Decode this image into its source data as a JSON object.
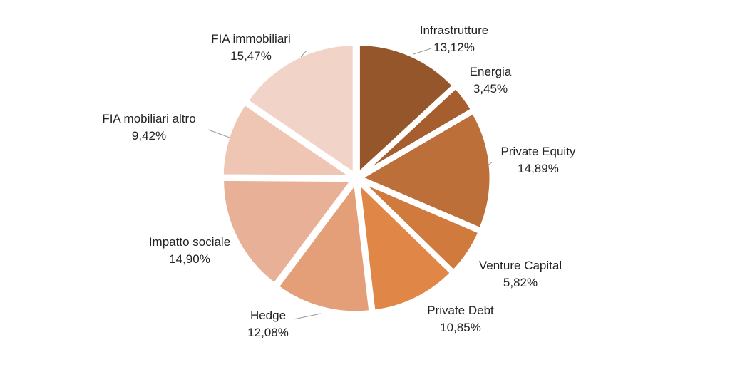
{
  "chart_data": {
    "type": "pie",
    "title": "",
    "start_angle_deg": 0,
    "direction": "clockwise",
    "exploded": true,
    "label_format": "name + percent, Italian decimal comma",
    "slices": [
      {
        "name": "Infrastrutture",
        "value": 13.12,
        "label": "13,12%",
        "color": "#96562b"
      },
      {
        "name": "Energia",
        "value": 3.45,
        "label": "3,45%",
        "color": "#a65e2e"
      },
      {
        "name": "Private Equity",
        "value": 14.89,
        "label": "14,89%",
        "color": "#bd6f39"
      },
      {
        "name": "Venture Capital",
        "value": 5.82,
        "label": "5,82%",
        "color": "#d07a3d"
      },
      {
        "name": "Private Debt",
        "value": 10.85,
        "label": "10,85%",
        "color": "#e08747"
      },
      {
        "name": "Hedge",
        "value": 12.08,
        "label": "12,08%",
        "color": "#e59f78"
      },
      {
        "name": "Impatto sociale",
        "value": 14.9,
        "label": "14,90%",
        "color": "#e8b096"
      },
      {
        "name": "FIA mobiliari altro",
        "value": 9.42,
        "label": "9,42%",
        "color": "#efc5b4"
      },
      {
        "name": "FIA immobiliari",
        "value": 15.47,
        "label": "15,47%",
        "color": "#f2d3c7"
      }
    ]
  }
}
